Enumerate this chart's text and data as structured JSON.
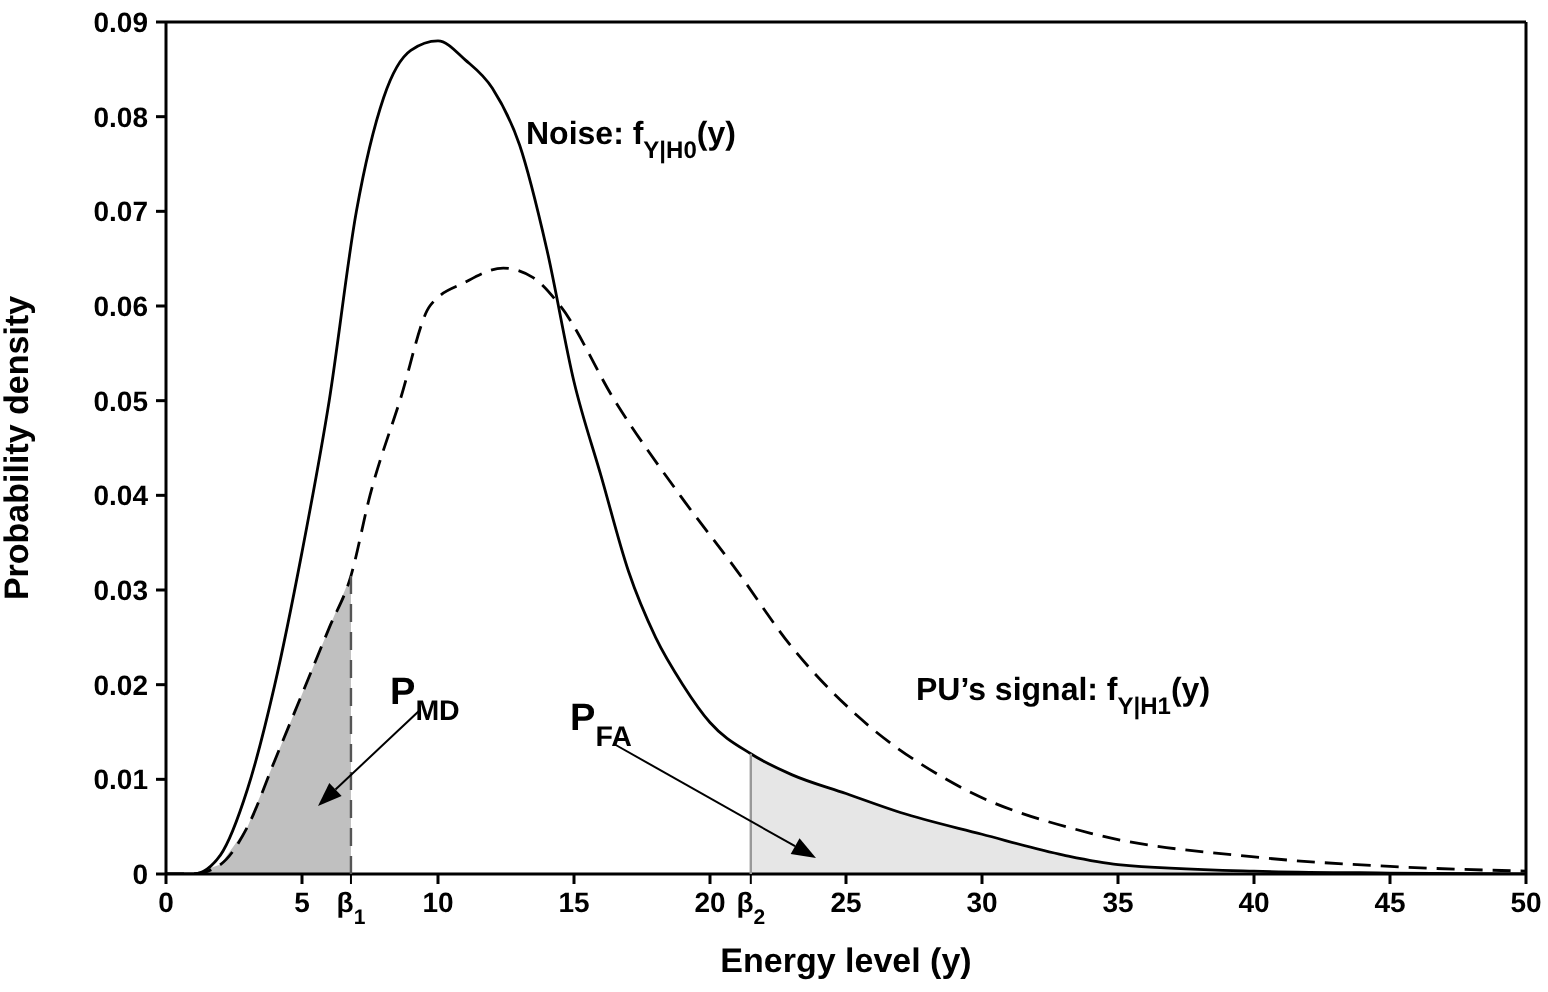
{
  "chart_data": {
    "type": "line",
    "xlabel": "Energy level (y)",
    "ylabel": "Probability density",
    "xlim": [
      0,
      50
    ],
    "ylim": [
      0,
      0.09
    ],
    "xticks": [
      0,
      5,
      10,
      15,
      20,
      25,
      30,
      35,
      40,
      45,
      50
    ],
    "ref_lines": [
      {
        "axis": "x",
        "value": 6.8,
        "label": "β$_{1}$",
        "color": "#555555",
        "line_style": "dashed"
      },
      {
        "axis": "x",
        "value": 21.5,
        "label": "β$_{2}$",
        "color": "#999999",
        "line_style": "solid"
      }
    ],
    "yticks": [
      0,
      0.01,
      0.02,
      0.03,
      0.04,
      0.05,
      0.06,
      0.07,
      0.08,
      0.09
    ],
    "marker": "none",
    "series": [
      {
        "type": "area",
        "color": "#c0c0c0",
        "x": [
          0,
          1,
          2,
          3,
          4,
          5,
          6,
          6.8
        ],
        "values": [
          0,
          0,
          0.001,
          0.005,
          0.012,
          0.019,
          0.026,
          0.0315
        ]
      },
      {
        "type": "area",
        "color": "#e6e6e6",
        "x": [
          21.5,
          23,
          25,
          27,
          30,
          33,
          35,
          40,
          45,
          50
        ],
        "values": [
          0.0127,
          0.0105,
          0.0085,
          0.0065,
          0.0042,
          0.002,
          0.001,
          0.0003,
          0.0001,
          0
        ]
      },
      {
        "name": "Noise: f$_{Y|H0}$(y)",
        "color": "#000000",
        "line_style": "solid",
        "x": [
          0,
          1,
          2,
          3,
          4,
          5,
          6,
          7,
          8,
          9,
          10,
          11,
          12,
          13,
          14,
          15,
          16,
          17,
          18,
          19,
          20,
          21.5,
          23,
          25,
          27,
          30,
          33,
          35,
          40,
          45,
          50
        ],
        "values": [
          0,
          0,
          0.002,
          0.009,
          0.02,
          0.034,
          0.05,
          0.07,
          0.082,
          0.087,
          0.088,
          0.086,
          0.083,
          0.077,
          0.066,
          0.052,
          0.042,
          0.032,
          0.025,
          0.02,
          0.016,
          0.0127,
          0.0105,
          0.0085,
          0.0065,
          0.0042,
          0.002,
          0.001,
          0.0003,
          0.0001,
          0
        ]
      },
      {
        "name": "PU’s signal: f$_{Y|H1}$(y)",
        "color": "#000000",
        "line_style": "dashed",
        "x": [
          0,
          1,
          2,
          3,
          4,
          5,
          6,
          6.8,
          7.5,
          8.6,
          9.7,
          11,
          12.4,
          13.5,
          14.5,
          16.5,
          18.9,
          21,
          23,
          25.5,
          29,
          34,
          40,
          45,
          50
        ],
        "values": [
          0,
          0,
          0.001,
          0.005,
          0.012,
          0.019,
          0.026,
          0.0315,
          0.04,
          0.05,
          0.06,
          0.0625,
          0.064,
          0.063,
          0.06,
          0.05,
          0.04,
          0.032,
          0.024,
          0.0165,
          0.0095,
          0.0043,
          0.0018,
          0.0008,
          0.0003
        ]
      }
    ],
    "annotations": [
      "P$_{MD}$",
      "P$_{FA}$"
    ]
  }
}
